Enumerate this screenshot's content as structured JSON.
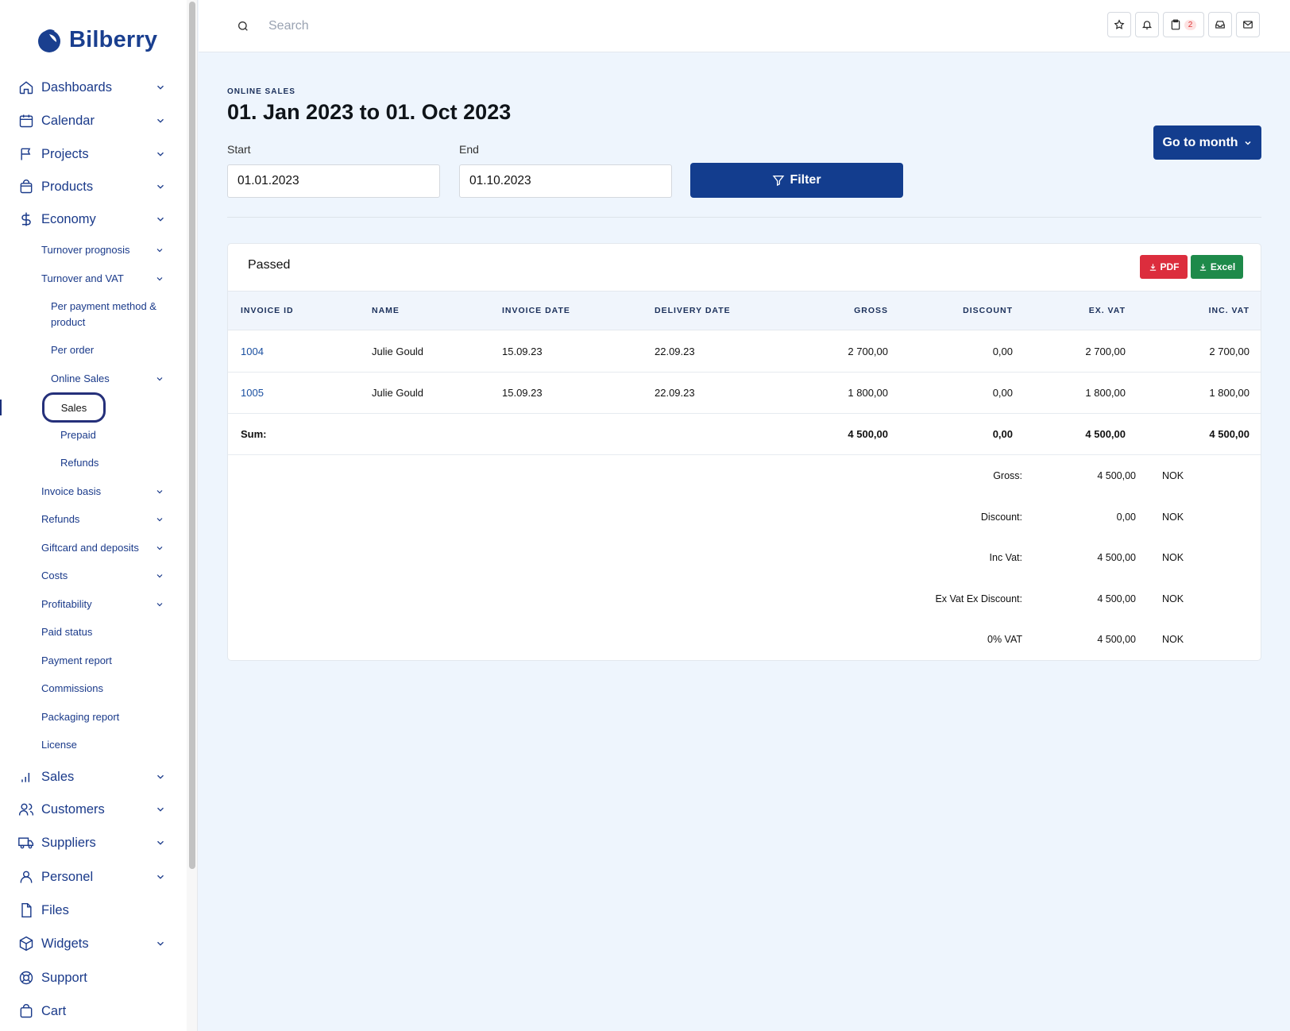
{
  "brand": {
    "name": "Bilberry",
    "color": "#1a3f8f"
  },
  "sidebar": {
    "top_items": [
      {
        "label": "Dashboards",
        "icon": "home-icon",
        "chevron": true
      },
      {
        "label": "Calendar",
        "icon": "calendar-icon",
        "chevron": true
      },
      {
        "label": "Projects",
        "icon": "flag-icon",
        "chevron": true
      },
      {
        "label": "Products",
        "icon": "shopping-bag-icon",
        "chevron": true
      },
      {
        "label": "Economy",
        "icon": "dollar-icon",
        "chevron": true
      }
    ],
    "economy_sub": [
      {
        "label": "Turnover prognosis",
        "chevron": true
      },
      {
        "label": "Turnover and VAT",
        "chevron": true
      }
    ],
    "turnover_vat_sub": [
      {
        "label": "Per payment method & product"
      },
      {
        "label": "Per order"
      },
      {
        "label": "Online Sales",
        "chevron": true
      }
    ],
    "online_sales_sub": [
      {
        "label": "Sales",
        "active": true
      },
      {
        "label": "Prepaid"
      },
      {
        "label": "Refunds"
      }
    ],
    "economy_sub_more": [
      {
        "label": "Invoice basis",
        "chevron": true
      },
      {
        "label": "Refunds",
        "chevron": true
      },
      {
        "label": "Giftcard and deposits",
        "chevron": true
      },
      {
        "label": "Costs",
        "chevron": true
      },
      {
        "label": "Profitability",
        "chevron": true
      },
      {
        "label": "Paid status"
      },
      {
        "label": "Payment report"
      },
      {
        "label": "Commissions"
      },
      {
        "label": "Packaging report"
      },
      {
        "label": "License"
      }
    ],
    "bottom_items": [
      {
        "label": "Sales",
        "icon": "bar-chart-icon",
        "chevron": true
      },
      {
        "label": "Customers",
        "icon": "users-icon",
        "chevron": true
      },
      {
        "label": "Suppliers",
        "icon": "truck-icon",
        "chevron": true
      },
      {
        "label": "Personel",
        "icon": "user-icon",
        "chevron": true
      },
      {
        "label": "Files",
        "icon": "file-icon",
        "chevron": false
      },
      {
        "label": "Widgets",
        "icon": "cube-icon",
        "chevron": true
      },
      {
        "label": "Support",
        "icon": "lifebuoy-icon",
        "chevron": false
      },
      {
        "label": "Cart",
        "icon": "cart-icon",
        "chevron": false
      }
    ]
  },
  "header": {
    "search_placeholder": "Search",
    "clipboard_badge": "2"
  },
  "page": {
    "eyebrow": "ONLINE SALES",
    "title": "01. Jan 2023 to 01. Oct 2023",
    "goto_label": "Go to month",
    "start_label": "Start",
    "start_value": "01.01.2023",
    "end_label": "End",
    "end_value": "01.10.2023",
    "filter_label": "Filter"
  },
  "table": {
    "title": "Passed",
    "pdf_label": "PDF",
    "excel_label": "Excel",
    "pdf_color": "#dc2d3d",
    "excel_color": "#1e8a4a",
    "columns": [
      "INVOICE ID",
      "NAME",
      "INVOICE DATE",
      "DELIVERY DATE",
      "GROSS",
      "DISCOUNT",
      "EX. VAT",
      "INC. VAT"
    ],
    "rows": [
      [
        "1004",
        "Julie Gould",
        "15.09.23",
        "22.09.23",
        "2 700,00",
        "0,00",
        "2 700,00",
        "2 700,00"
      ],
      [
        "1005",
        "Julie Gould",
        "15.09.23",
        "22.09.23",
        "1 800,00",
        "0,00",
        "1 800,00",
        "1 800,00"
      ]
    ],
    "sum_label": "Sum:",
    "sum": [
      "4 500,00",
      "0,00",
      "4 500,00",
      "4 500,00"
    ]
  },
  "summary": [
    {
      "label": "Gross:",
      "value": "4 500,00",
      "currency": "NOK"
    },
    {
      "label": "Discount:",
      "value": "0,00",
      "currency": "NOK"
    },
    {
      "label": "Inc Vat:",
      "value": "4 500,00",
      "currency": "NOK"
    },
    {
      "label": "Ex Vat Ex Discount:",
      "value": "4 500,00",
      "currency": "NOK"
    },
    {
      "label": "0% VAT",
      "value": "4 500,00",
      "currency": "NOK"
    }
  ],
  "colors": {
    "primary": "#133d8e",
    "background": "#eef5fd",
    "nav_text": "#1a3a8a"
  }
}
